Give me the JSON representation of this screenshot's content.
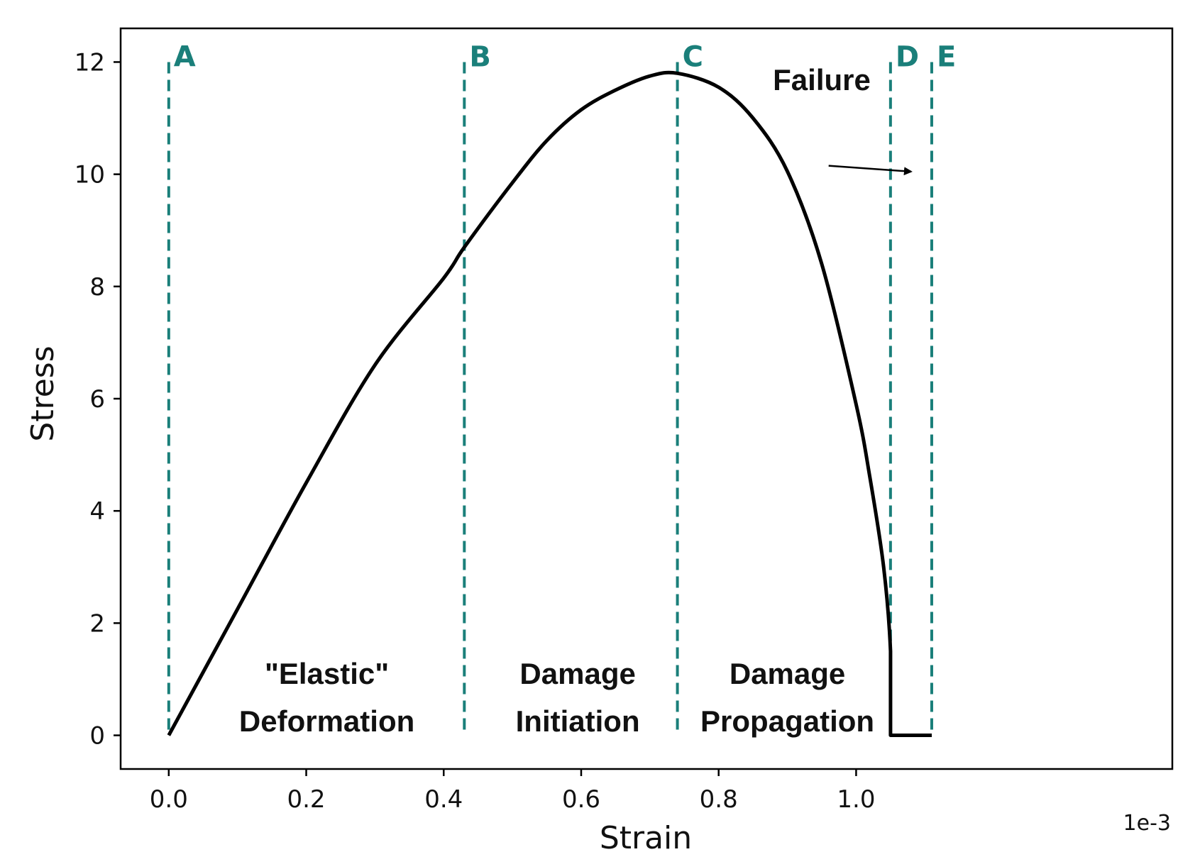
{
  "chart_data": {
    "type": "line",
    "title": "",
    "xlabel": "Strain",
    "ylabel": "Stress",
    "x_offset_label": "1e-3",
    "xlim": [
      -0.07,
      1.46
    ],
    "ylim": [
      -0.6,
      12.6
    ],
    "x_ticks": [
      0.0,
      0.2,
      0.4,
      0.6,
      0.8,
      1.0
    ],
    "x_tick_labels": [
      "0.0",
      "0.2",
      "0.4",
      "0.6",
      "0.8",
      "1.0"
    ],
    "y_ticks": [
      0,
      2,
      4,
      6,
      8,
      10,
      12
    ],
    "y_tick_labels": [
      "0",
      "2",
      "4",
      "6",
      "8",
      "10",
      "12"
    ],
    "grid": false,
    "colors": {
      "curve": "#000000",
      "marker": "#1a7f7a"
    },
    "series": [
      {
        "x": [
          0.0,
          0.1,
          0.2,
          0.3,
          0.4,
          0.43,
          0.5,
          0.55,
          0.6,
          0.65,
          0.7,
          0.74,
          0.8,
          0.85,
          0.9,
          0.95,
          1.0,
          1.02,
          1.04,
          1.05,
          1.05,
          1.11
        ],
        "y": [
          0.0,
          2.25,
          4.5,
          6.6,
          8.15,
          8.7,
          9.85,
          10.6,
          11.15,
          11.5,
          11.75,
          11.8,
          11.55,
          11.0,
          10.05,
          8.4,
          5.9,
          4.6,
          3.0,
          1.5,
          0.0,
          0.0
        ]
      }
    ],
    "markers": [
      {
        "label": "A",
        "x": 0.0
      },
      {
        "label": "B",
        "x": 0.43
      },
      {
        "label": "C",
        "x": 0.74
      },
      {
        "label": "D",
        "x": 1.05
      },
      {
        "label": "E",
        "x": 1.11
      }
    ],
    "marker_top": 12.0,
    "regions": [
      {
        "lines": [
          "\"Elastic\"",
          "Deformation"
        ],
        "x": 0.23
      },
      {
        "lines": [
          "Damage",
          "Initiation"
        ],
        "x": 0.595
      },
      {
        "lines": [
          "Damage",
          "Propagation"
        ],
        "x": 0.9
      }
    ],
    "annotations": [
      {
        "text": "Failure",
        "text_x": 0.95,
        "text_y": 11.5,
        "arrow_from": [
          0.96,
          10.0
        ],
        "arrow_to": [
          1.08,
          10.3
        ]
      }
    ]
  }
}
